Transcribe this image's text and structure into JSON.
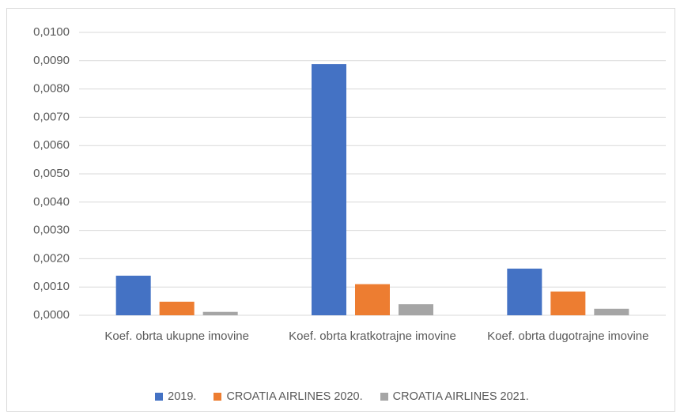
{
  "chart_data": {
    "type": "bar",
    "categories": [
      "Koef. obrta ukupne imovine",
      "Koef. obrta kratkotrajne imovine",
      "Koef. obrta dugotrajne imovine"
    ],
    "series": [
      {
        "name": "2019.",
        "color": "#4472c4",
        "values": [
          0.0014,
          0.00888,
          0.00165
        ]
      },
      {
        "name": "CROATIA AIRLINES 2020.",
        "color": "#ed7d31",
        "values": [
          0.00048,
          0.0011,
          0.00084
        ]
      },
      {
        "name": "CROATIA AIRLINES 2021.",
        "color": "#a5a5a5",
        "values": [
          0.00012,
          0.00039,
          0.00023
        ]
      }
    ],
    "ylim": [
      0,
      0.01
    ],
    "yticks": [
      {
        "value": 0,
        "label": "0,0000"
      },
      {
        "value": 0.001,
        "label": "0,0010"
      },
      {
        "value": 0.002,
        "label": "0,0020"
      },
      {
        "value": 0.003,
        "label": "0,0030"
      },
      {
        "value": 0.004,
        "label": "0,0040"
      },
      {
        "value": 0.005,
        "label": "0,0050"
      },
      {
        "value": 0.006,
        "label": "0,0060"
      },
      {
        "value": 0.007,
        "label": "0,0070"
      },
      {
        "value": 0.008,
        "label": "0,0080"
      },
      {
        "value": 0.009,
        "label": "0,0090"
      },
      {
        "value": 0.01,
        "label": "0,0100"
      }
    ],
    "grid": true,
    "legend": "bottom"
  }
}
